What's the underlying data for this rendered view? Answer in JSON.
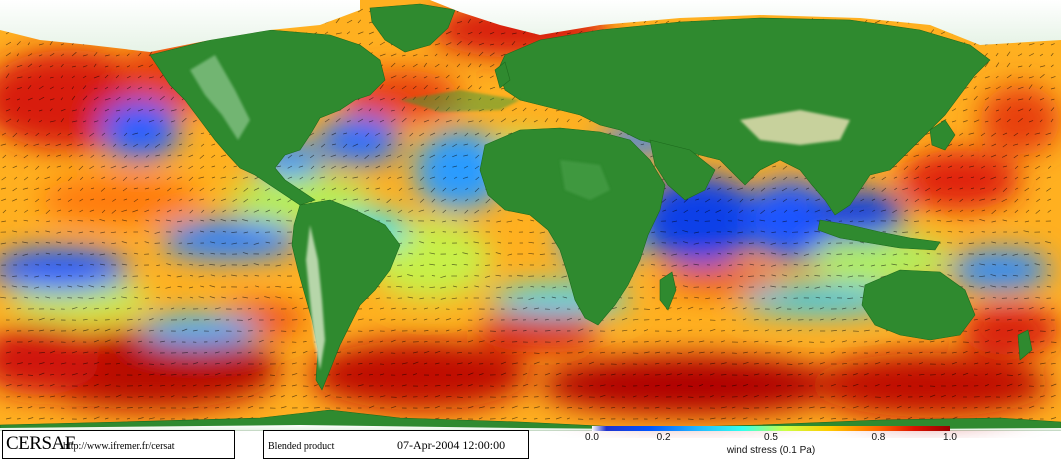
{
  "footer": {
    "brand": "CERSAF",
    "url": "http://www.ifremer.fr/cersat",
    "product": "Blended product",
    "datetime": "07-Apr-2004 12:00:00"
  },
  "legend": {
    "title": "wind stress (0.1 Pa)",
    "ticks": [
      "0.0",
      "0.2",
      "0.5",
      "0.8",
      "1.0"
    ],
    "tick_values": [
      0.0,
      0.2,
      0.5,
      0.8,
      1.0
    ],
    "range": [
      0.0,
      1.0
    ],
    "colors": [
      "#ffffff",
      "#2233cc",
      "#0055ff",
      "#22bbff",
      "#33ffee",
      "#ccff44",
      "#ffcc00",
      "#ff6600",
      "#dd1100",
      "#990000"
    ]
  },
  "map": {
    "projection": "equirectangular",
    "land_color": "#2f8a2f",
    "ice_color": "#ffffff",
    "vector_color": "#000000",
    "show_wind_vectors": true
  }
}
